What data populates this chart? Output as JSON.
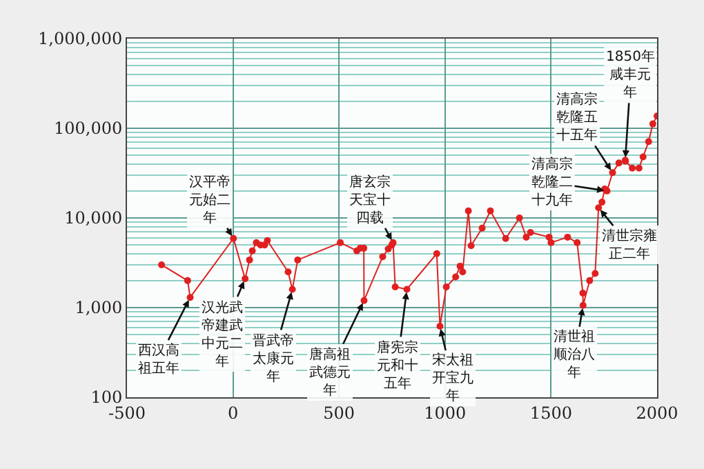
{
  "chart_data": {
    "type": "line",
    "x": [
      -337,
      -214,
      -202,
      2,
      57,
      78,
      91,
      110,
      130,
      149,
      162,
      260,
      280,
      305,
      506,
      584,
      600,
      617,
      618,
      706,
      732,
      749,
      755,
      765,
      820,
      961,
      976,
      1006,
      1050,
      1071,
      1083,
      1110,
      1123,
      1175,
      1214,
      1286,
      1351,
      1383,
      1403,
      1491,
      1500,
      1578,
      1623,
      1650,
      1651,
      1682,
      1708,
      1724,
      1740,
      1753,
      1764,
      1790,
      1820,
      1850,
      1851,
      1883,
      1915,
      1934,
      1960,
      1980,
      2000
    ],
    "series": [
      {
        "color": "#e02020",
        "values": [
          3000,
          2000,
          1300,
          5900,
          2100,
          3400,
          4300,
          5300,
          5000,
          5000,
          5600,
          2500,
          1600,
          3400,
          5300,
          4300,
          4600,
          4600,
          1200,
          3700,
          4500,
          5000,
          5300,
          1700,
          1600,
          4000,
          620,
          1700,
          2200,
          2900,
          2500,
          12000,
          4900,
          7700,
          12000,
          5900,
          10000,
          6100,
          6900,
          6100,
          5300,
          6100,
          5300,
          1450,
          1060,
          2000,
          2400,
          13000,
          15000,
          21000,
          20000,
          32000,
          41000,
          44000,
          43000,
          36000,
          36000,
          48000,
          71000,
          112000,
          137000
        ]
      }
    ],
    "xlim": [
      -500,
      2000
    ],
    "xticks": [
      -500,
      0,
      500,
      1000,
      1500,
      2000
    ],
    "ylim": [
      100,
      1000000
    ],
    "log": true,
    "yticks": [
      100,
      {
        "value": 200,
        "label": null
      },
      {
        "value": 300,
        "label": null
      },
      {
        "value": 400,
        "label": null
      },
      {
        "value": 500,
        "label": null
      },
      {
        "value": 600,
        "label": null
      },
      {
        "value": 700,
        "label": null
      },
      {
        "value": 800,
        "label": null
      },
      {
        "value": 900,
        "label": null
      },
      {
        "value": 1000,
        "label": "1,000"
      },
      {
        "value": 2000,
        "label": null
      },
      {
        "value": 3000,
        "label": null
      },
      {
        "value": 4000,
        "label": null
      },
      {
        "value": 5000,
        "label": null
      },
      {
        "value": 6000,
        "label": null
      },
      {
        "value": 7000,
        "label": null
      },
      {
        "value": 8000,
        "label": null
      },
      {
        "value": 9000,
        "label": null
      },
      {
        "value": 10000,
        "label": "10,000"
      },
      {
        "value": 20000,
        "label": null
      },
      {
        "value": 30000,
        "label": null
      },
      {
        "value": 40000,
        "label": null
      },
      {
        "value": 50000,
        "label": null
      },
      {
        "value": 60000,
        "label": null
      },
      {
        "value": 70000,
        "label": null
      },
      {
        "value": 80000,
        "label": null
      },
      {
        "value": 90000,
        "label": null
      },
      {
        "value": 100000,
        "label": "100,000"
      },
      {
        "value": 200000,
        "label": null
      },
      {
        "value": 300000,
        "label": null
      },
      {
        "value": 400000,
        "label": null
      },
      {
        "value": 500000,
        "label": null
      },
      {
        "value": 600000,
        "label": null
      },
      {
        "value": 700000,
        "label": null
      },
      {
        "value": 800000,
        "label": null
      },
      {
        "value": 900000,
        "label": null
      },
      {
        "value": 1000000,
        "label": "1,000,000"
      }
    ],
    "grid": true,
    "marker": "circle",
    "line_style": "solid",
    "annotations": [
      {
        "text": "西汉高祖五年",
        "x": -202,
        "y": 1300
      },
      {
        "text": "汉平帝元始二年",
        "x": 2,
        "y": 5900
      },
      {
        "text": "汉光武帝建武中元二年",
        "x": 57,
        "y": 2100
      },
      {
        "text": "晋武帝太康元年",
        "x": 280,
        "y": 1600
      },
      {
        "text": "唐高祖武德元年",
        "x": 618,
        "y": 1200
      },
      {
        "text": "唐玄宗天宝十四载",
        "x": 755,
        "y": 5300
      },
      {
        "text": "唐宪宗元和十五年",
        "x": 820,
        "y": 1600
      },
      {
        "text": "宋太祖开宝九年",
        "x": 976,
        "y": 620
      },
      {
        "text": "清世祖顺治八年",
        "x": 1651,
        "y": 1060
      },
      {
        "text": "清世宗雍正二年",
        "x": 1724,
        "y": 13000
      },
      {
        "text": "清高宗乾隆二十九年",
        "x": 1764,
        "y": 20000
      },
      {
        "text": "清高宗乾隆五十五年",
        "x": 1790,
        "y": 32000
      },
      {
        "text": "1850年咸丰元年",
        "x": 1850,
        "y": 44000
      }
    ]
  }
}
